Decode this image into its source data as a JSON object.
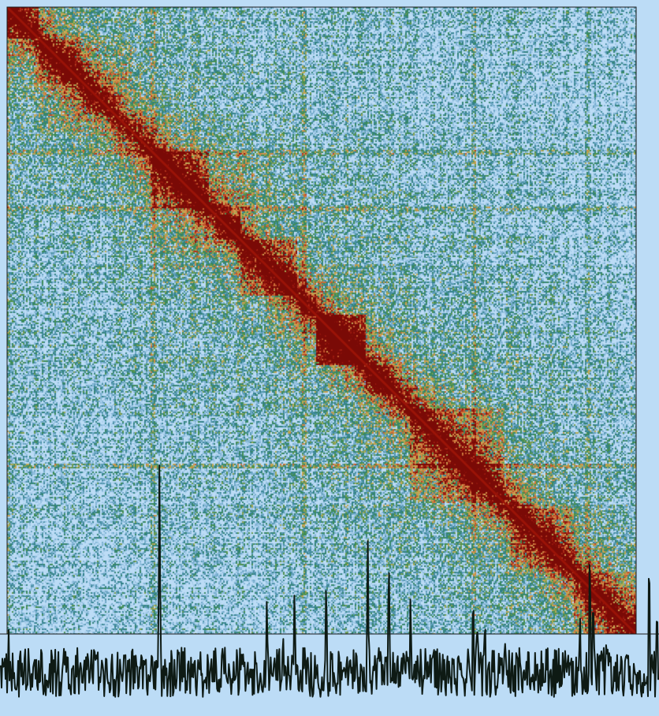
{
  "view": {
    "background_color": "#bcdcf6",
    "frame_color": "#1a1a1a"
  },
  "chart_data": [
    {
      "type": "heatmap",
      "title": "",
      "xlabel": "",
      "ylabel": "",
      "symmetric": true,
      "colormap": [
        "#bcdcf6",
        "#7fb3d6",
        "#2f7f8c",
        "#3f8f4a",
        "#c9b25a",
        "#d27a3e",
        "#a51d12",
        "#7a0a06"
      ],
      "diagonal_color": "#9b1408",
      "domains": [
        {
          "start": 0.0,
          "end": 0.05,
          "intensity": 0.65
        },
        {
          "start": 0.05,
          "end": 0.12,
          "intensity": 0.7
        },
        {
          "start": 0.12,
          "end": 0.17,
          "intensity": 0.55
        },
        {
          "start": 0.23,
          "end": 0.32,
          "intensity": 0.95
        },
        {
          "start": 0.33,
          "end": 0.37,
          "intensity": 0.9
        },
        {
          "start": 0.37,
          "end": 0.46,
          "intensity": 0.8
        },
        {
          "start": 0.46,
          "end": 0.49,
          "intensity": 0.6
        },
        {
          "start": 0.49,
          "end": 0.57,
          "intensity": 0.85
        },
        {
          "start": 0.57,
          "end": 0.62,
          "intensity": 0.6
        },
        {
          "start": 0.64,
          "end": 0.79,
          "intensity": 0.7
        },
        {
          "start": 0.8,
          "end": 0.9,
          "intensity": 0.6
        },
        {
          "start": 0.9,
          "end": 1.0,
          "intensity": 0.55
        }
      ],
      "off_diagonal_blocks": [
        {
          "x": [
            0.49,
            0.57
          ],
          "y": [
            0.49,
            0.57
          ],
          "intensity": 0.85
        },
        {
          "x": [
            0.05,
            0.12
          ],
          "y": [
            0.12,
            0.2
          ],
          "intensity": 0.45
        },
        {
          "x": [
            0.23,
            0.32
          ],
          "y": [
            0.33,
            0.42
          ],
          "intensity": 0.4
        }
      ],
      "stripe_columns": [
        0.23,
        0.0,
        0.47,
        0.74,
        0.92
      ],
      "stripe_rows": [
        0.23,
        0.32,
        0.73
      ]
    },
    {
      "type": "line",
      "title": "",
      "xlabel": "",
      "ylabel": "",
      "series": [
        {
          "color": "#0e1a14",
          "baseline": 0.12,
          "noise": 0.1,
          "peaks": [
            {
              "x": 0.242,
              "height": 1.0
            },
            {
              "x": 0.155,
              "height": 0.22
            },
            {
              "x": 0.27,
              "height": 0.28
            },
            {
              "x": 0.405,
              "height": 0.45
            },
            {
              "x": 0.447,
              "height": 0.5
            },
            {
              "x": 0.495,
              "height": 0.55
            },
            {
              "x": 0.558,
              "height": 0.68
            },
            {
              "x": 0.59,
              "height": 0.65
            },
            {
              "x": 0.623,
              "height": 0.47
            },
            {
              "x": 0.718,
              "height": 0.5
            },
            {
              "x": 0.724,
              "height": 0.38
            },
            {
              "x": 0.735,
              "height": 0.32
            },
            {
              "x": 0.88,
              "height": 0.38
            },
            {
              "x": 0.895,
              "height": 0.68
            },
            {
              "x": 0.9,
              "height": 0.5
            },
            {
              "x": 0.925,
              "height": 0.25
            },
            {
              "x": 0.985,
              "height": 0.68
            },
            {
              "x": 0.997,
              "height": 0.45
            }
          ]
        }
      ]
    }
  ]
}
